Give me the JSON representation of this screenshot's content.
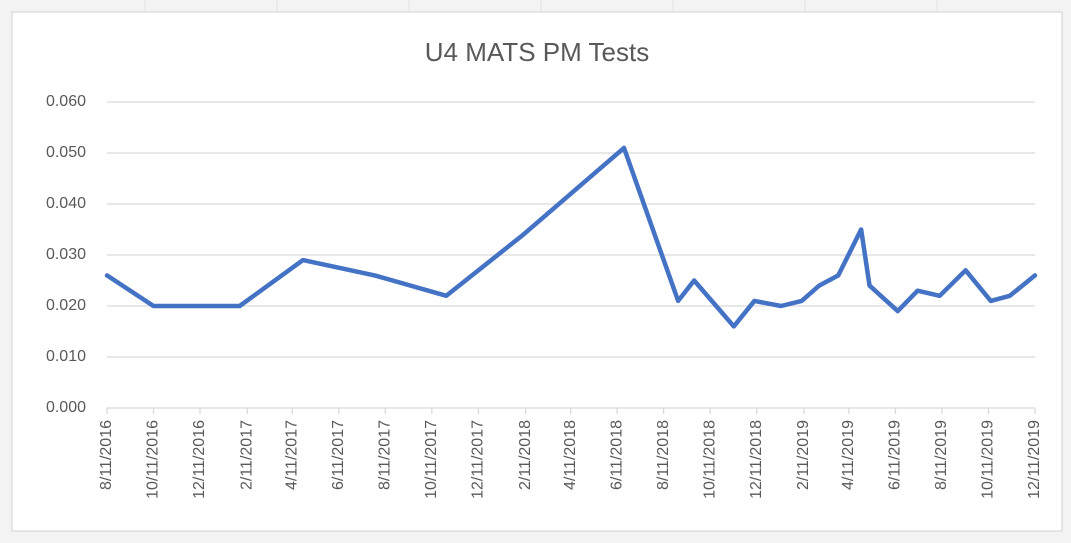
{
  "chart_data": {
    "type": "line",
    "title": "U4 MATS PM Tests",
    "x": [
      "8/11/2016",
      "10/11/2016",
      "2/1/2017",
      "4/25/2017",
      "7/28/2017",
      "10/30/2017",
      "2/8/2018",
      "6/20/2018",
      "8/30/2018",
      "9/20/2018",
      "11/11/2018",
      "12/8/2018",
      "1/12/2019",
      "2/8/2019",
      "3/3/2019",
      "3/28/2019",
      "4/27/2019",
      "5/8/2019",
      "6/14/2019",
      "7/10/2019",
      "8/8/2019",
      "9/11/2019",
      "10/14/2019",
      "11/8/2019",
      "12/11/2019"
    ],
    "series": [
      {
        "name": "U4 MATS PM Tests",
        "color": "#4472c4",
        "values": [
          0.026,
          0.02,
          0.02,
          0.029,
          0.026,
          0.022,
          0.034,
          0.051,
          0.021,
          0.025,
          0.016,
          0.021,
          0.02,
          0.021,
          0.024,
          0.026,
          0.035,
          0.024,
          0.019,
          0.023,
          0.022,
          0.027,
          0.021,
          0.022,
          0.026
        ]
      }
    ],
    "xlim": [
      "8/11/2016",
      "12/11/2019"
    ],
    "xticks": [
      "8/11/2016",
      "10/11/2016",
      "12/11/2016",
      "2/11/2017",
      "4/11/2017",
      "6/11/2017",
      "8/11/2017",
      "10/11/2017",
      "12/11/2017",
      "2/11/2018",
      "4/11/2018",
      "6/11/2018",
      "8/11/2018",
      "10/11/2018",
      "12/11/2018",
      "2/11/2019",
      "4/11/2019",
      "6/11/2019",
      "8/11/2019",
      "10/11/2019",
      "12/11/2019"
    ],
    "ylim": [
      0,
      0.06
    ],
    "yticks": [
      {
        "value": 0,
        "label": "0.000"
      },
      {
        "value": 0.01,
        "label": "0.010"
      },
      {
        "value": 0.02,
        "label": "0.020"
      },
      {
        "value": 0.03,
        "label": "0.030"
      },
      {
        "value": 0.04,
        "label": "0.040"
      },
      {
        "value": 0.05,
        "label": "0.050"
      },
      {
        "value": 0.06,
        "label": "0.060"
      }
    ],
    "grid": true
  }
}
